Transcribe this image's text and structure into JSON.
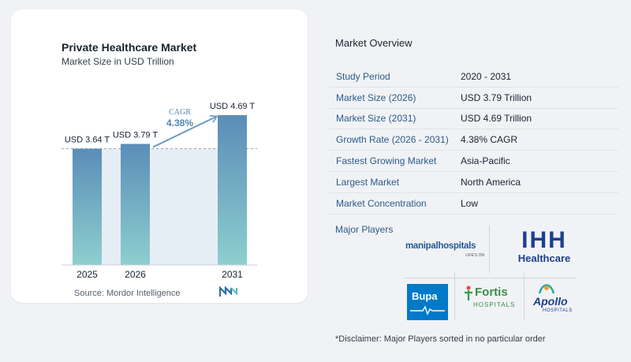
{
  "chart": {
    "title": "Private Healthcare Market",
    "subtitle": "Market Size in USD Trillion",
    "source": "Source:  Mordor Intelligence",
    "cagr_label": "CAGR",
    "cagr_value": "4.38%"
  },
  "chart_data": {
    "type": "bar",
    "categories": [
      "2025",
      "2026",
      "2031"
    ],
    "values": [
      3.64,
      3.79,
      4.69
    ],
    "data_labels": [
      "USD 3.64 T",
      "USD 3.79 T",
      "USD 4.69 T"
    ],
    "title": "Private Healthcare Market",
    "subtitle": "Market Size in USD Trillion",
    "xlabel": "",
    "ylabel": "",
    "ylim": [
      0,
      4.69
    ],
    "grid": false,
    "annotations": [
      "CAGR",
      "4.38%"
    ],
    "colors": {
      "bar_top": "#5b8db8",
      "bar_bottom": "#8dcfcf",
      "band": "#e6eef5",
      "arrow": "#6b9cc6",
      "cagr_text": "#4f86b8"
    }
  },
  "overview": {
    "title": "Market Overview",
    "rows": [
      {
        "key": "Study Period",
        "value": "2020 - 2031"
      },
      {
        "key": "Market Size (2026)",
        "value": "USD 3.79 Trillion"
      },
      {
        "key": "Market Size (2031)",
        "value": "USD 4.69 Trillion"
      },
      {
        "key": "Growth Rate (2026 - 2031)",
        "value": "4.38% CAGR"
      },
      {
        "key": "Fastest Growing Market",
        "value": "Asia-Pacific"
      },
      {
        "key": "Largest Market",
        "value": "North America"
      },
      {
        "key": "Market Concentration",
        "value": "Low"
      }
    ],
    "players_title": "Major Players",
    "disclaimer": "*Disclaimer: Major Players sorted in no particular order"
  },
  "players": {
    "manipal": {
      "name": "manipalhospitals",
      "tagline": "LIFE'S ON"
    },
    "ihh": {
      "mark": "IHH",
      "name": "Healthcare"
    },
    "bupa": {
      "name": "Bupa"
    },
    "fortis": {
      "name": "Fortis",
      "sub": "HOSPITALS"
    },
    "apollo": {
      "name": "Apollo",
      "sub": "HOSPITALS"
    }
  }
}
